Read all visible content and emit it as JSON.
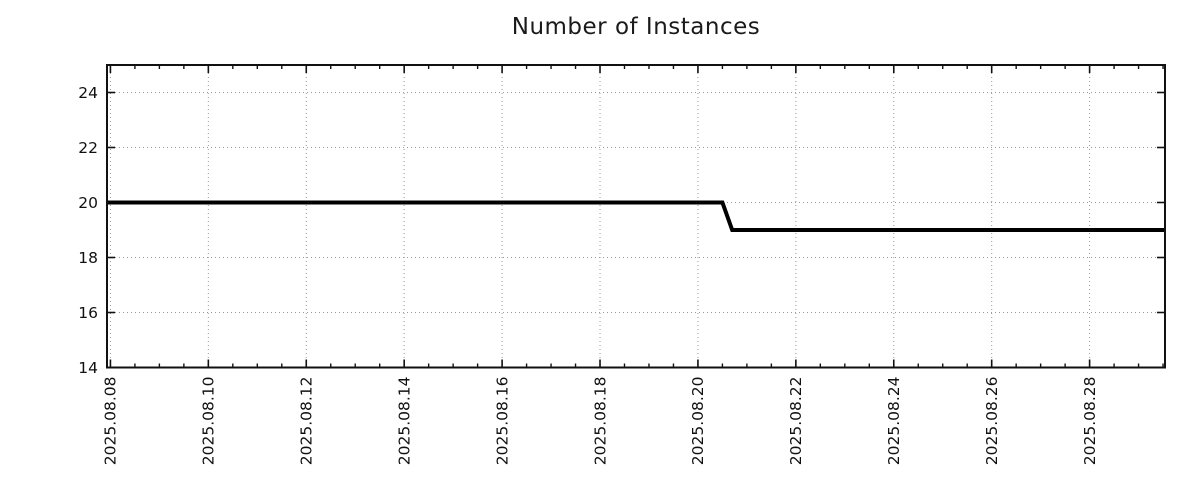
{
  "chart_data": {
    "type": "line",
    "title": "Number of Instances",
    "xlabel": "",
    "ylabel": "",
    "grid": "dotted",
    "legend": false,
    "x_axis": {
      "tick_labels": [
        "2025.08.08",
        "2025.08.10",
        "2025.08.12",
        "2025.08.14",
        "2025.08.16",
        "2025.08.18",
        "2025.08.20",
        "2025.08.22",
        "2025.08.24",
        "2025.08.26",
        "2025.08.28"
      ],
      "tick_day_offsets": [
        0,
        2,
        4,
        6,
        8,
        10,
        12,
        14,
        16,
        18,
        20
      ],
      "minor_tick_interval_days": 0.5,
      "range_days": [
        -0.07,
        21.54
      ],
      "label_rotation_degrees": -90
    },
    "y_axis": {
      "tick_labels": [
        "14",
        "16",
        "18",
        "20",
        "22",
        "24"
      ],
      "tick_values": [
        14,
        16,
        18,
        20,
        22,
        24
      ],
      "gridline_values": [
        16,
        18,
        20,
        22,
        24
      ],
      "range": [
        14,
        25
      ]
    },
    "series": [
      {
        "name": "instances",
        "color": "#000000",
        "points": [
          {
            "x_day": -0.07,
            "date": "2025-08-08 00:00 (axis start)",
            "value": 20
          },
          {
            "x_day": 12.5,
            "date": "2025-08-20 ~12:00",
            "value": 20
          },
          {
            "x_day": 12.7,
            "date": "2025-08-20 ~17:00",
            "value": 19
          },
          {
            "x_day": 21.54,
            "date": "2025-08-29 ~13:00 (axis end)",
            "value": 19
          }
        ]
      }
    ],
    "colors": {
      "line": "#000000",
      "grid": "#999999",
      "axis": "#111111",
      "text": "#1a1a1a",
      "background": "#ffffff"
    }
  }
}
